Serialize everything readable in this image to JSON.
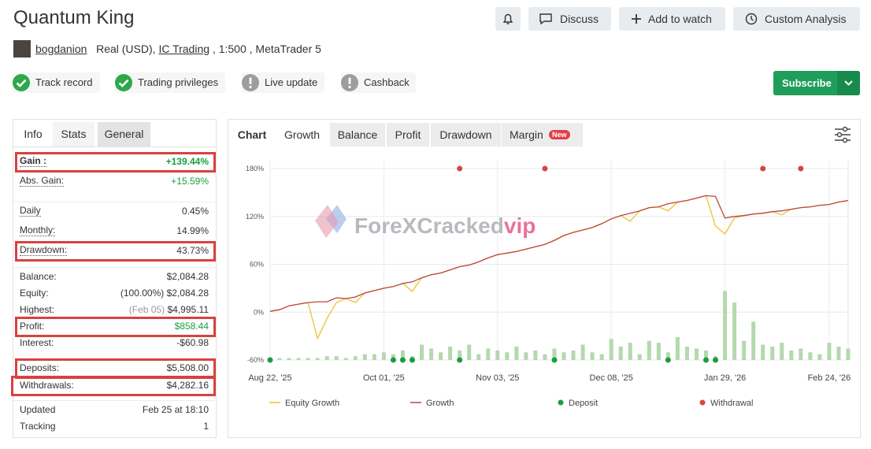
{
  "header": {
    "title": "Quantum King",
    "buttons": [
      "Discuss",
      "Add to watch",
      "Custom Analysis"
    ]
  },
  "account": {
    "user": "bogdanion",
    "details": "Real (USD),",
    "broker": "IC Trading",
    "extra": ", 1:500 , MetaTrader 5"
  },
  "badges": [
    {
      "label": "Track record",
      "verified": true
    },
    {
      "label": "Trading privileges",
      "verified": true
    },
    {
      "label": "Live update",
      "verified": false
    },
    {
      "label": "Cashback",
      "verified": false
    }
  ],
  "subscribe": "Subscribe",
  "stats_tabs": [
    "Info",
    "Stats",
    "General"
  ],
  "stats": [
    [
      {
        "label": "Gain :",
        "value": "+139.44%",
        "highlight": true,
        "color": "#1a9e3f",
        "bold": true
      },
      {
        "label": "Abs. Gain:",
        "value": "+15.59%",
        "color": "#1a9e3f"
      }
    ],
    [
      {
        "label": "Daily",
        "value": "0.45%"
      },
      {
        "label": "Monthly:",
        "value": "14.99%"
      },
      {
        "label": "Drawdown:",
        "value": "43.73%",
        "highlight": true
      }
    ],
    [
      {
        "label": "Balance:",
        "value": "$2,084.28"
      },
      {
        "label": "Equity:",
        "note": "(100.00%)",
        "value": "$2,084.28"
      },
      {
        "label": "Highest:",
        "note": "(Feb 05)",
        "value": "$4,995.11"
      },
      {
        "label": "Profit:",
        "value": "$858.44",
        "highlight": true,
        "color": "#1a9e3f"
      },
      {
        "label": "Interest:",
        "value": "-$60.98"
      }
    ],
    [
      {
        "label": "Deposits:",
        "value": "$5,508.00",
        "highlight": true
      },
      {
        "label": "Withdrawals:",
        "value": "$4,282.16",
        "highlight": true
      }
    ],
    [
      {
        "label": "Updated",
        "value": "Feb 25 at 18:10"
      },
      {
        "label": "Tracking",
        "value": "1"
      }
    ]
  ],
  "chart_tabs": [
    "Chart",
    "Growth",
    "Balance",
    "Profit",
    "Drawdown",
    "Margin"
  ],
  "new_badge": "New",
  "watermark": [
    "ForeXCracked",
    "vip"
  ],
  "chart_data": {
    "type": "line",
    "categories": [
      "Aug 22, '25",
      null,
      null,
      null,
      null,
      null,
      null,
      null,
      null,
      null,
      null,
      null,
      "Oct 01, '25",
      null,
      null,
      null,
      null,
      null,
      null,
      null,
      null,
      null,
      null,
      null,
      "Nov 03, '25",
      null,
      null,
      null,
      null,
      null,
      null,
      null,
      null,
      null,
      null,
      null,
      "Dec 08, '25",
      null,
      null,
      null,
      null,
      null,
      null,
      null,
      null,
      null,
      null,
      null,
      "Jan 29, '26",
      null,
      null,
      null,
      null,
      null,
      null,
      null,
      null,
      null,
      null,
      "Feb 24, '26",
      null,
      null
    ],
    "series": [
      {
        "name": "Equity Growth",
        "color": "#ecc230",
        "values": [
          1,
          3,
          8,
          10,
          12,
          -33,
          -8,
          12,
          17,
          12,
          24,
          27,
          30,
          32,
          36,
          26,
          43,
          47,
          49,
          53,
          57,
          59,
          63,
          68,
          72,
          74,
          76,
          79,
          82,
          85,
          90,
          96,
          100,
          103,
          106,
          111,
          117,
          121,
          114,
          127,
          131,
          132,
          127,
          138,
          140,
          143,
          146,
          108,
          98,
          118,
          121,
          123,
          124,
          126,
          122,
          129,
          131,
          132,
          134,
          135,
          138,
          140
        ]
      },
      {
        "name": "Growth",
        "color": "#b9473d",
        "values": [
          1,
          3,
          8,
          10,
          12,
          13,
          13,
          18,
          17,
          19,
          24,
          27,
          30,
          32,
          36,
          38,
          43,
          47,
          49,
          53,
          57,
          59,
          63,
          68,
          72,
          74,
          76,
          79,
          82,
          85,
          90,
          96,
          100,
          103,
          106,
          111,
          117,
          121,
          124,
          127,
          131,
          132,
          136,
          138,
          140,
          143,
          146,
          145,
          118,
          120,
          121,
          123,
          124,
          126,
          127,
          129,
          131,
          132,
          134,
          135,
          138,
          140
        ]
      },
      {
        "name": "Deposit",
        "color": "#1a9e3f",
        "marker": "dot",
        "values": [
          -60,
          null,
          null,
          null,
          null,
          null,
          null,
          null,
          null,
          null,
          null,
          null,
          null,
          -60,
          -60,
          -60,
          null,
          null,
          null,
          null,
          -60,
          null,
          null,
          null,
          null,
          null,
          null,
          null,
          null,
          null,
          -60,
          null,
          null,
          null,
          null,
          null,
          null,
          null,
          null,
          null,
          null,
          null,
          -60,
          null,
          null,
          null,
          -60,
          -60,
          null,
          null,
          null,
          null,
          null,
          null,
          null,
          null,
          null,
          null,
          null,
          null,
          null,
          null
        ]
      },
      {
        "name": "Withdrawal",
        "color": "#d9443f",
        "marker": "dot",
        "values": [
          null,
          null,
          null,
          null,
          null,
          null,
          null,
          null,
          null,
          null,
          null,
          null,
          null,
          null,
          null,
          null,
          null,
          null,
          null,
          null,
          180,
          null,
          null,
          null,
          null,
          null,
          null,
          null,
          null,
          180,
          null,
          null,
          null,
          null,
          null,
          null,
          null,
          null,
          null,
          null,
          null,
          null,
          null,
          null,
          null,
          null,
          null,
          null,
          null,
          null,
          null,
          null,
          180,
          null,
          null,
          null,
          180,
          null,
          null,
          null,
          null,
          null
        ]
      }
    ],
    "bars": {
      "color": "#b3d9ad",
      "axis": "y2",
      "values": [
        1,
        1,
        1,
        1,
        1,
        1,
        2,
        2,
        1,
        2,
        3,
        3,
        4,
        3,
        5,
        2,
        8,
        6,
        4,
        7,
        5,
        8,
        3,
        6,
        5,
        4,
        7,
        4,
        5,
        3,
        6,
        4,
        5,
        8,
        4,
        3,
        11,
        7,
        9,
        3,
        10,
        9,
        4,
        12,
        7,
        6,
        5,
        2,
        36,
        30,
        10,
        20,
        8,
        7,
        9,
        5,
        6,
        4,
        3,
        9,
        7,
        6
      ]
    },
    "ylim": [
      -60,
      180
    ],
    "yticks": [
      {
        "value": -60,
        "label": "-60%"
      },
      {
        "value": 0,
        "label": "0%"
      },
      {
        "value": 60,
        "label": "60%"
      },
      {
        "value": 120,
        "label": "120%"
      },
      {
        "value": 180,
        "label": "180%"
      }
    ],
    "y2lim": [
      0,
      100
    ],
    "grid": true
  }
}
